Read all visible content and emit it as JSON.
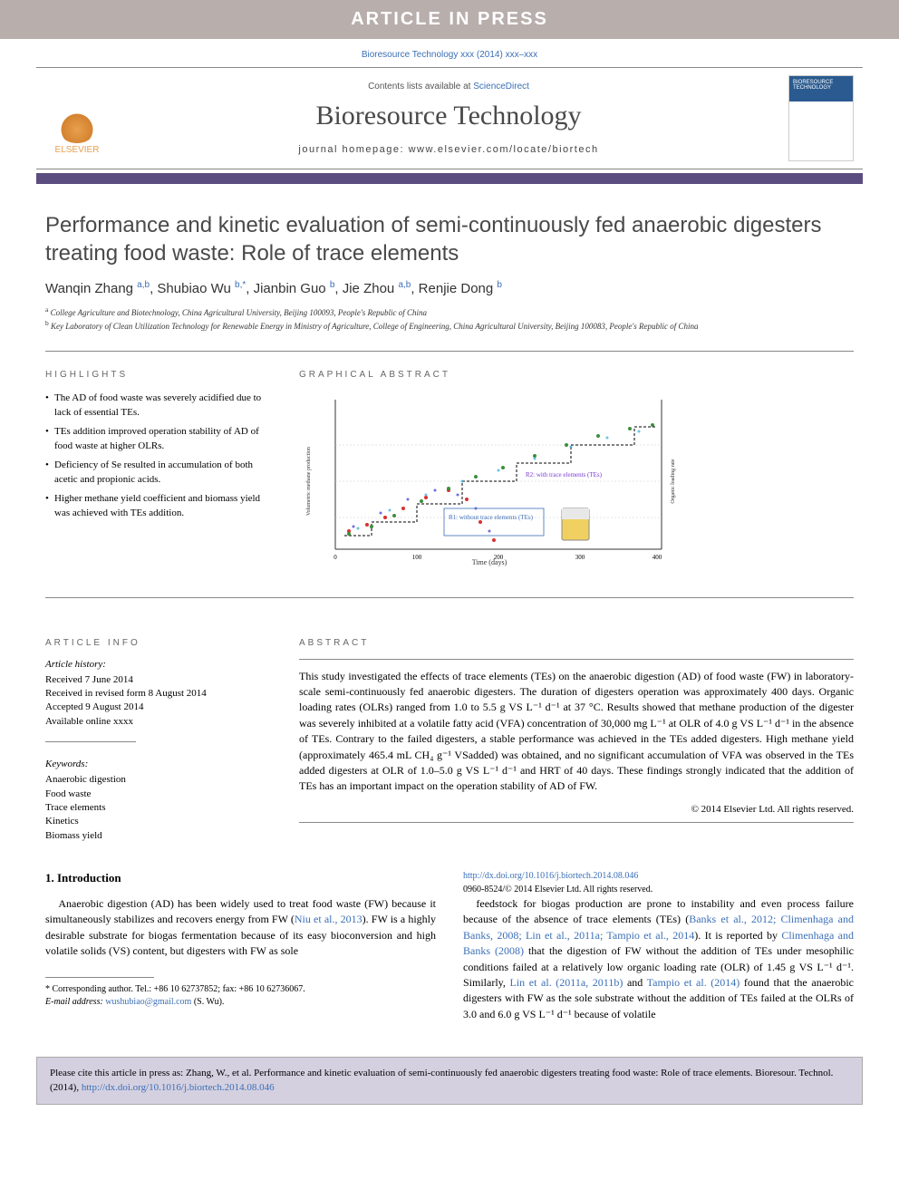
{
  "banner": {
    "text": "ARTICLE IN PRESS"
  },
  "ref_line": "Bioresource Technology xxx (2014) xxx–xxx",
  "header": {
    "contents_prefix": "Contents lists available at ",
    "contents_link": "ScienceDirect",
    "journal_title": "Bioresource Technology",
    "homepage_label": "journal homepage: www.elsevier.com/locate/biortech",
    "publisher": "ELSEVIER",
    "cover_title": "BIORESOURCE TECHNOLOGY"
  },
  "title": "Performance and kinetic evaluation of semi-continuously fed anaerobic digesters treating food waste: Role of trace elements",
  "authors_html": "Wanqin Zhang <sup>a,b</sup>, Shubiao Wu <sup>b,*</sup>, Jianbin Guo <sup>b</sup>, Jie Zhou <sup>a,b</sup>, Renjie Dong <sup>b</sup>",
  "affiliations": [
    {
      "sup": "a",
      "text": "College Agriculture and Biotechnology, China Agricultural University, Beijing 100093, People's Republic of China"
    },
    {
      "sup": "b",
      "text": "Key Laboratory of Clean Utilization Technology for Renewable Energy in Ministry of Agriculture, College of Engineering, China Agricultural University, Beijing 100083, People's Republic of China"
    }
  ],
  "highlights": {
    "label": "HIGHLIGHTS",
    "items": [
      "The AD of food waste was severely acidified due to lack of essential TEs.",
      "TEs addition improved operation stability of AD of food waste at higher OLRs.",
      "Deficiency of Se resulted in accumulation of both acetic and propionic acids.",
      "Higher methane yield coefficient and biomass yield was achieved with TEs addition."
    ]
  },
  "graphical_abstract": {
    "label": "GRAPHICAL ABSTRACT",
    "x_label": "Time (days)",
    "y_left": "Volumetric methane production rate (L·L⁻¹·d⁻¹)",
    "y_right": "Organic loading rate (g VS·L⁻¹·d⁻¹)",
    "series": [
      {
        "name": "R1",
        "color": "#d93030",
        "marker": "circle"
      },
      {
        "name": "R2",
        "color": "#3b8f3b",
        "marker": "triangle"
      },
      {
        "name": "R1 VMPR",
        "color": "#3030d9",
        "marker": "diamond"
      },
      {
        "name": "R2 VMPR",
        "color": "#30a8d9",
        "marker": "circle"
      }
    ],
    "annotations": [
      {
        "text": "R2: with trace elements (TEs)",
        "color": "#7a3bd0"
      },
      {
        "text": "R1: without trace elements (TEs)",
        "color": "#3b6fb6"
      }
    ],
    "x_range": [
      0,
      400
    ],
    "y_left_range": [
      0,
      3
    ],
    "y_right_range": [
      0,
      6
    ]
  },
  "article_info": {
    "label": "ARTICLE INFO",
    "history_head": "Article history:",
    "history": [
      "Received 7 June 2014",
      "Received in revised form 8 August 2014",
      "Accepted 9 August 2014",
      "Available online xxxx"
    ],
    "keywords_head": "Keywords:",
    "keywords": [
      "Anaerobic digestion",
      "Food waste",
      "Trace elements",
      "Kinetics",
      "Biomass yield"
    ]
  },
  "abstract": {
    "label": "ABSTRACT",
    "text": "This study investigated the effects of trace elements (TEs) on the anaerobic digestion (AD) of food waste (FW) in laboratory-scale semi-continuously fed anaerobic digesters. The duration of digesters operation was approximately 400 days. Organic loading rates (OLRs) ranged from 1.0 to 5.5 g VS L⁻¹ d⁻¹ at 37 °C. Results showed that methane production of the digester was severely inhibited at a volatile fatty acid (VFA) concentration of 30,000 mg L⁻¹ at OLR of 4.0 g VS L⁻¹ d⁻¹ in the absence of TEs. Contrary to the failed digesters, a stable performance was achieved in the TEs added digesters. High methane yield (approximately 465.4 mL CH₄ g⁻¹ VSadded) was obtained, and no significant accumulation of VFA was observed in the TEs added digesters at OLR of 1.0–5.0 g VS L⁻¹ d⁻¹ and HRT of 40 days. These findings strongly indicated that the addition of TEs has an important impact on the operation stability of AD of FW.",
    "copyright": "© 2014 Elsevier Ltd. All rights reserved."
  },
  "introduction": {
    "heading": "1. Introduction",
    "col1": "Anaerobic digestion (AD) has been widely used to treat food waste (FW) because it simultaneously stabilizes and recovers energy from FW (<a>Niu et al., 2013</a>). FW is a highly desirable substrate for biogas fermentation because of its easy bioconversion and high volatile solids (VS) content, but digesters with FW as sole",
    "col2": "feedstock for biogas production are prone to instability and even process failure because of the absence of trace elements (TEs) (<a>Banks et al., 2012; Climenhaga and Banks, 2008; Lin et al., 2011a; Tampio et al., 2014</a>). It is reported by <a>Climenhaga and Banks (2008)</a> that the digestion of FW without the addition of TEs under mesophilic conditions failed at a relatively low organic loading rate (OLR) of 1.45 g VS L⁻¹ d⁻¹. Similarly, <a>Lin et al. (2011a, 2011b)</a> and <a>Tampio et al. (2014)</a> found that the anaerobic digesters with FW as the sole substrate without the addition of TEs failed at the OLRs of 3.0 and 6.0 g VS L⁻¹ d⁻¹ because of volatile"
  },
  "footnote": {
    "corresponding": "* Corresponding author. Tel.: +86 10 62737852; fax: +86 10 62736067.",
    "email_label": "E-mail address: ",
    "email": "wushubiao@gmail.com",
    "email_suffix": " (S. Wu)."
  },
  "doi": {
    "link": "http://dx.doi.org/10.1016/j.biortech.2014.08.046",
    "line": "0960-8524/© 2014 Elsevier Ltd. All rights reserved."
  },
  "cite_box": {
    "text": "Please cite this article in press as: Zhang, W., et al. Performance and kinetic evaluation of semi-continuously fed anaerobic digesters treating food waste: Role of trace elements. Bioresour. Technol. (2014), ",
    "link": "http://dx.doi.org/10.1016/j.biortech.2014.08.046"
  },
  "colors": {
    "banner_bg": "#b8aeac",
    "link": "#3b6fb6",
    "colorbar": "#5b4d7f",
    "citebox_bg": "#d4d0e0",
    "elsevier": "#e8a04f",
    "title_gray": "#494949"
  }
}
